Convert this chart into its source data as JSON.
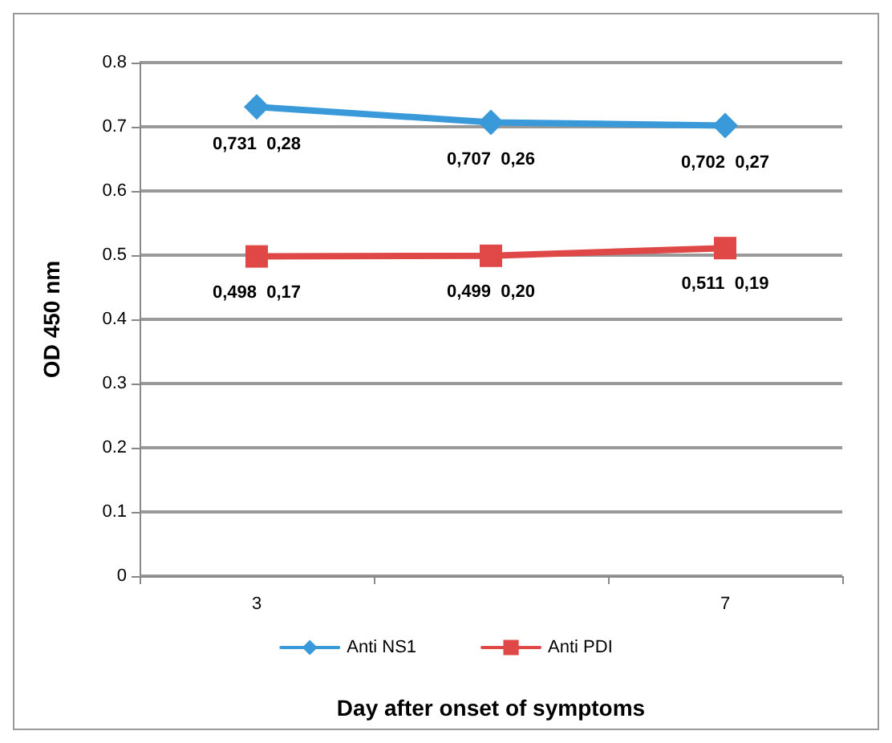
{
  "chart_data": {
    "type": "line",
    "xlabel": "Day after onset of symptoms",
    "ylabel": "OD 450 nm",
    "categories": [
      "3",
      null,
      "7"
    ],
    "series": [
      {
        "name": "Anti NS1",
        "color": "#3a9ad9",
        "marker": "diamond",
        "values": [
          0.731,
          0.707,
          0.702
        ],
        "value_labels": [
          "0,731  0,28",
          "0,707  0,26",
          "0,702  0,27"
        ]
      },
      {
        "name": "Anti PDI",
        "color": "#e04848",
        "marker": "square",
        "values": [
          0.498,
          0.499,
          0.511
        ],
        "value_labels": [
          "0,498  0,17",
          "0,499  0,20",
          "0,511  0,19"
        ]
      }
    ],
    "ylim": [
      0,
      0.8
    ],
    "yticks": [
      0,
      0.1,
      0.2,
      0.3,
      0.4,
      0.5,
      0.6,
      0.7,
      0.8
    ],
    "grid": "y",
    "legend": "bottom",
    "line_style": "solid"
  }
}
